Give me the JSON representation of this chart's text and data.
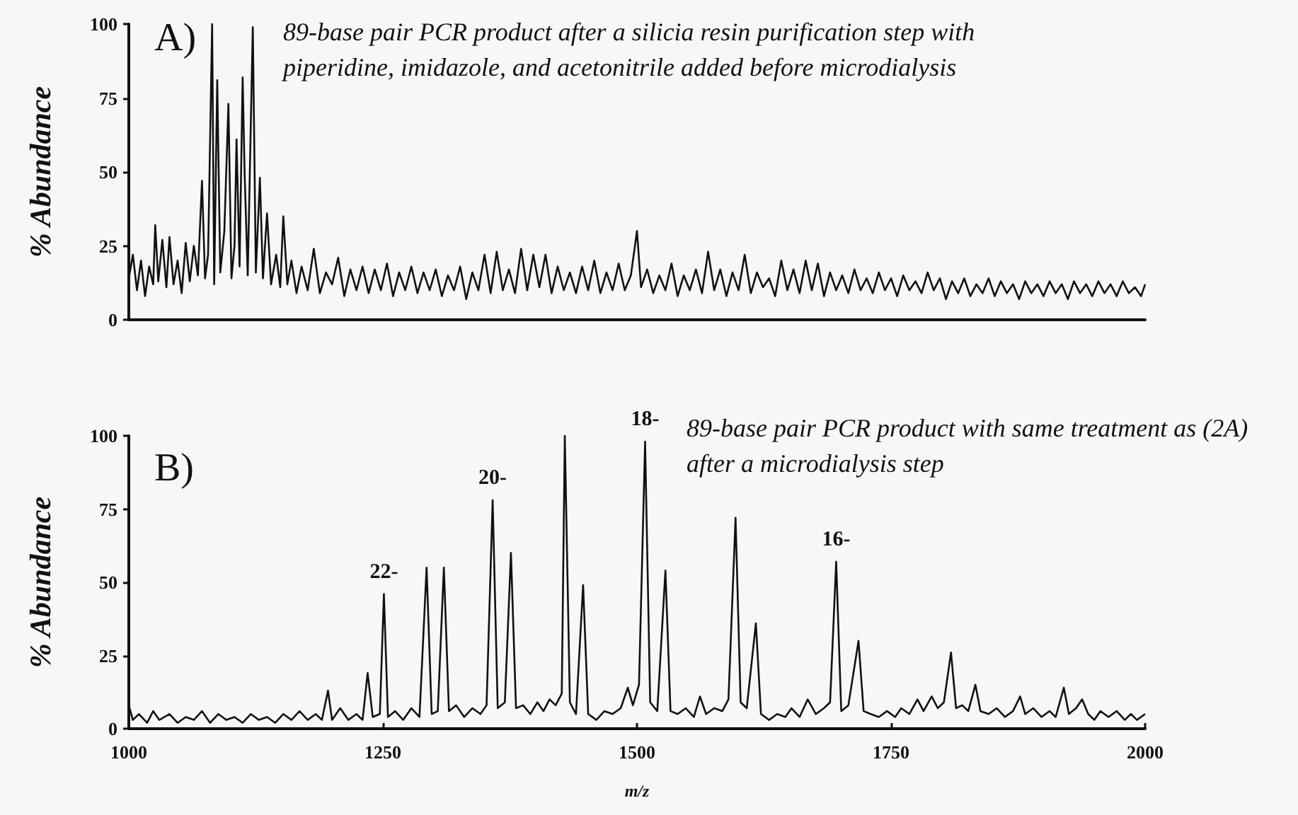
{
  "chart_data": [
    {
      "type": "line",
      "title": "A)",
      "ylabel": "% Abundance",
      "annotations": [
        "89-base pair PCR product after a silicia resin purification step with piperidine, imidazole, and acetonitrile added before microdialysis"
      ],
      "xlim": [
        1000,
        2000
      ],
      "ylim": [
        0,
        100
      ],
      "yticks": [
        0,
        25,
        50,
        75,
        100
      ],
      "tick_labels": "y",
      "grid": false,
      "marker": "none",
      "line_style": "solid",
      "series": [
        {
          "color": "#111111",
          "x": [
            1000,
            1004,
            1008,
            1012,
            1016,
            1020,
            1024,
            1026,
            1029,
            1033,
            1037,
            1040,
            1044,
            1048,
            1052,
            1056,
            1060,
            1064,
            1068,
            1072,
            1075,
            1078,
            1082,
            1084,
            1087,
            1090,
            1094,
            1098,
            1101,
            1104,
            1106,
            1109,
            1112,
            1114,
            1117,
            1122,
            1125,
            1129,
            1132,
            1136,
            1140,
            1145,
            1149,
            1152,
            1156,
            1160,
            1165,
            1170,
            1176,
            1182,
            1188,
            1194,
            1200,
            1206,
            1212,
            1218,
            1224,
            1230,
            1236,
            1242,
            1248,
            1254,
            1260,
            1266,
            1272,
            1278,
            1284,
            1290,
            1296,
            1302,
            1308,
            1314,
            1320,
            1326,
            1332,
            1338,
            1344,
            1350,
            1356,
            1362,
            1368,
            1374,
            1380,
            1386,
            1392,
            1398,
            1404,
            1410,
            1416,
            1422,
            1428,
            1434,
            1440,
            1446,
            1452,
            1458,
            1464,
            1470,
            1476,
            1482,
            1488,
            1494,
            1500,
            1504,
            1510,
            1516,
            1522,
            1528,
            1534,
            1540,
            1546,
            1552,
            1558,
            1564,
            1570,
            1576,
            1582,
            1588,
            1594,
            1600,
            1606,
            1612,
            1618,
            1624,
            1630,
            1636,
            1642,
            1648,
            1654,
            1660,
            1666,
            1672,
            1678,
            1684,
            1690,
            1696,
            1702,
            1708,
            1714,
            1720,
            1726,
            1732,
            1738,
            1744,
            1750,
            1756,
            1762,
            1768,
            1774,
            1780,
            1786,
            1792,
            1798,
            1804,
            1810,
            1816,
            1822,
            1828,
            1834,
            1840,
            1846,
            1852,
            1858,
            1864,
            1870,
            1876,
            1882,
            1888,
            1894,
            1900,
            1906,
            1912,
            1918,
            1924,
            1930,
            1936,
            1942,
            1948,
            1954,
            1960,
            1966,
            1972,
            1978,
            1984,
            1990,
            1996,
            2000
          ],
          "values": [
            14,
            22,
            10,
            20,
            8,
            18,
            12,
            32,
            13,
            27,
            11,
            28,
            12,
            20,
            9,
            26,
            13,
            25,
            15,
            47,
            14,
            22,
            100,
            12,
            81,
            16,
            30,
            73,
            14,
            25,
            61,
            18,
            82,
            49,
            15,
            99,
            16,
            48,
            14,
            36,
            12,
            22,
            11,
            35,
            12,
            20,
            9,
            18,
            10,
            24,
            9,
            16,
            12,
            21,
            8,
            17,
            10,
            18,
            9,
            17,
            10,
            19,
            8,
            16,
            10,
            18,
            9,
            16,
            10,
            17,
            8,
            15,
            10,
            18,
            7,
            16,
            10,
            22,
            9,
            23,
            10,
            17,
            9,
            24,
            10,
            22,
            11,
            22,
            9,
            18,
            10,
            16,
            9,
            18,
            10,
            20,
            9,
            16,
            10,
            19,
            10,
            15,
            30,
            11,
            17,
            9,
            15,
            10,
            19,
            8,
            15,
            10,
            17,
            9,
            23,
            10,
            17,
            8,
            16,
            10,
            22,
            9,
            16,
            11,
            14,
            8,
            20,
            10,
            17,
            9,
            20,
            10,
            19,
            8,
            16,
            10,
            15,
            9,
            17,
            10,
            14,
            9,
            16,
            10,
            14,
            8,
            15,
            10,
            13,
            9,
            16,
            10,
            14,
            7,
            13,
            9,
            14,
            8,
            12,
            9,
            14,
            8,
            13,
            9,
            12,
            7,
            13,
            9,
            12,
            8,
            13,
            9,
            12,
            7,
            13,
            9,
            12,
            8,
            13,
            9,
            12,
            8,
            13,
            9,
            11,
            8,
            12
          ]
        }
      ]
    },
    {
      "type": "line",
      "title": "B)",
      "xlabel": "m/z",
      "ylabel": "% Abundance",
      "annotations": [
        "89-base pair PCR product with same treatment as (2A) after a microdialysis step",
        {
          "text": "22-",
          "x": 1251,
          "y": 46
        },
        {
          "text": "20-",
          "x": 1358,
          "y": 78
        },
        {
          "text": "18-",
          "x": 1508,
          "y": 98
        },
        {
          "text": "16-",
          "x": 1696,
          "y": 57
        }
      ],
      "xlim": [
        1000,
        2000
      ],
      "xticks": [
        1000,
        1250,
        1500,
        1750,
        2000
      ],
      "ylim": [
        0,
        100
      ],
      "yticks": [
        0,
        25,
        50,
        75,
        100
      ],
      "grid": false,
      "marker": "none",
      "line_style": "solid",
      "series": [
        {
          "color": "#111111",
          "x": [
            1000,
            1004,
            1010,
            1018,
            1024,
            1030,
            1040,
            1048,
            1056,
            1064,
            1072,
            1080,
            1088,
            1096,
            1104,
            1112,
            1120,
            1128,
            1136,
            1144,
            1152,
            1160,
            1168,
            1176,
            1184,
            1190,
            1196,
            1200,
            1208,
            1216,
            1224,
            1230,
            1235,
            1240,
            1247,
            1251,
            1255,
            1262,
            1270,
            1278,
            1286,
            1293,
            1298,
            1304,
            1310,
            1315,
            1322,
            1330,
            1338,
            1346,
            1352,
            1358,
            1363,
            1370,
            1376,
            1381,
            1388,
            1395,
            1402,
            1408,
            1414,
            1420,
            1426,
            1429,
            1434,
            1440,
            1447,
            1452,
            1460,
            1468,
            1476,
            1484,
            1491,
            1496,
            1502,
            1508,
            1513,
            1520,
            1528,
            1533,
            1540,
            1548,
            1556,
            1562,
            1568,
            1576,
            1584,
            1590,
            1597,
            1602,
            1608,
            1617,
            1622,
            1630,
            1638,
            1646,
            1652,
            1660,
            1668,
            1676,
            1684,
            1690,
            1696,
            1701,
            1708,
            1718,
            1723,
            1730,
            1738,
            1746,
            1754,
            1760,
            1768,
            1776,
            1782,
            1790,
            1796,
            1802,
            1809,
            1814,
            1820,
            1826,
            1833,
            1838,
            1846,
            1854,
            1862,
            1870,
            1877,
            1882,
            1890,
            1898,
            1906,
            1912,
            1920,
            1925,
            1932,
            1938,
            1944,
            1950,
            1956,
            1964,
            1972,
            1980,
            1986,
            1992,
            2000
          ],
          "values": [
            8,
            3,
            5,
            2,
            6,
            3,
            5,
            2,
            4,
            3,
            6,
            2,
            5,
            3,
            4,
            2,
            5,
            3,
            4,
            2,
            5,
            3,
            6,
            3,
            5,
            3,
            13,
            3,
            7,
            3,
            5,
            3,
            19,
            4,
            5,
            46,
            4,
            6,
            3,
            7,
            4,
            55,
            5,
            6,
            55,
            6,
            8,
            4,
            7,
            5,
            8,
            78,
            7,
            9,
            60,
            7,
            8,
            5,
            9,
            6,
            10,
            8,
            12,
            100,
            9,
            5,
            49,
            5,
            3,
            6,
            5,
            7,
            14,
            8,
            15,
            98,
            9,
            6,
            54,
            6,
            5,
            7,
            4,
            11,
            5,
            7,
            6,
            10,
            72,
            9,
            7,
            36,
            5,
            3,
            5,
            4,
            7,
            4,
            10,
            5,
            7,
            9,
            57,
            6,
            8,
            30,
            6,
            5,
            4,
            6,
            4,
            7,
            5,
            10,
            6,
            11,
            7,
            9,
            26,
            7,
            8,
            6,
            15,
            6,
            5,
            7,
            4,
            6,
            11,
            5,
            7,
            4,
            6,
            4,
            14,
            5,
            7,
            10,
            5,
            3,
            6,
            4,
            6,
            3,
            5,
            3,
            5
          ]
        }
      ]
    }
  ]
}
